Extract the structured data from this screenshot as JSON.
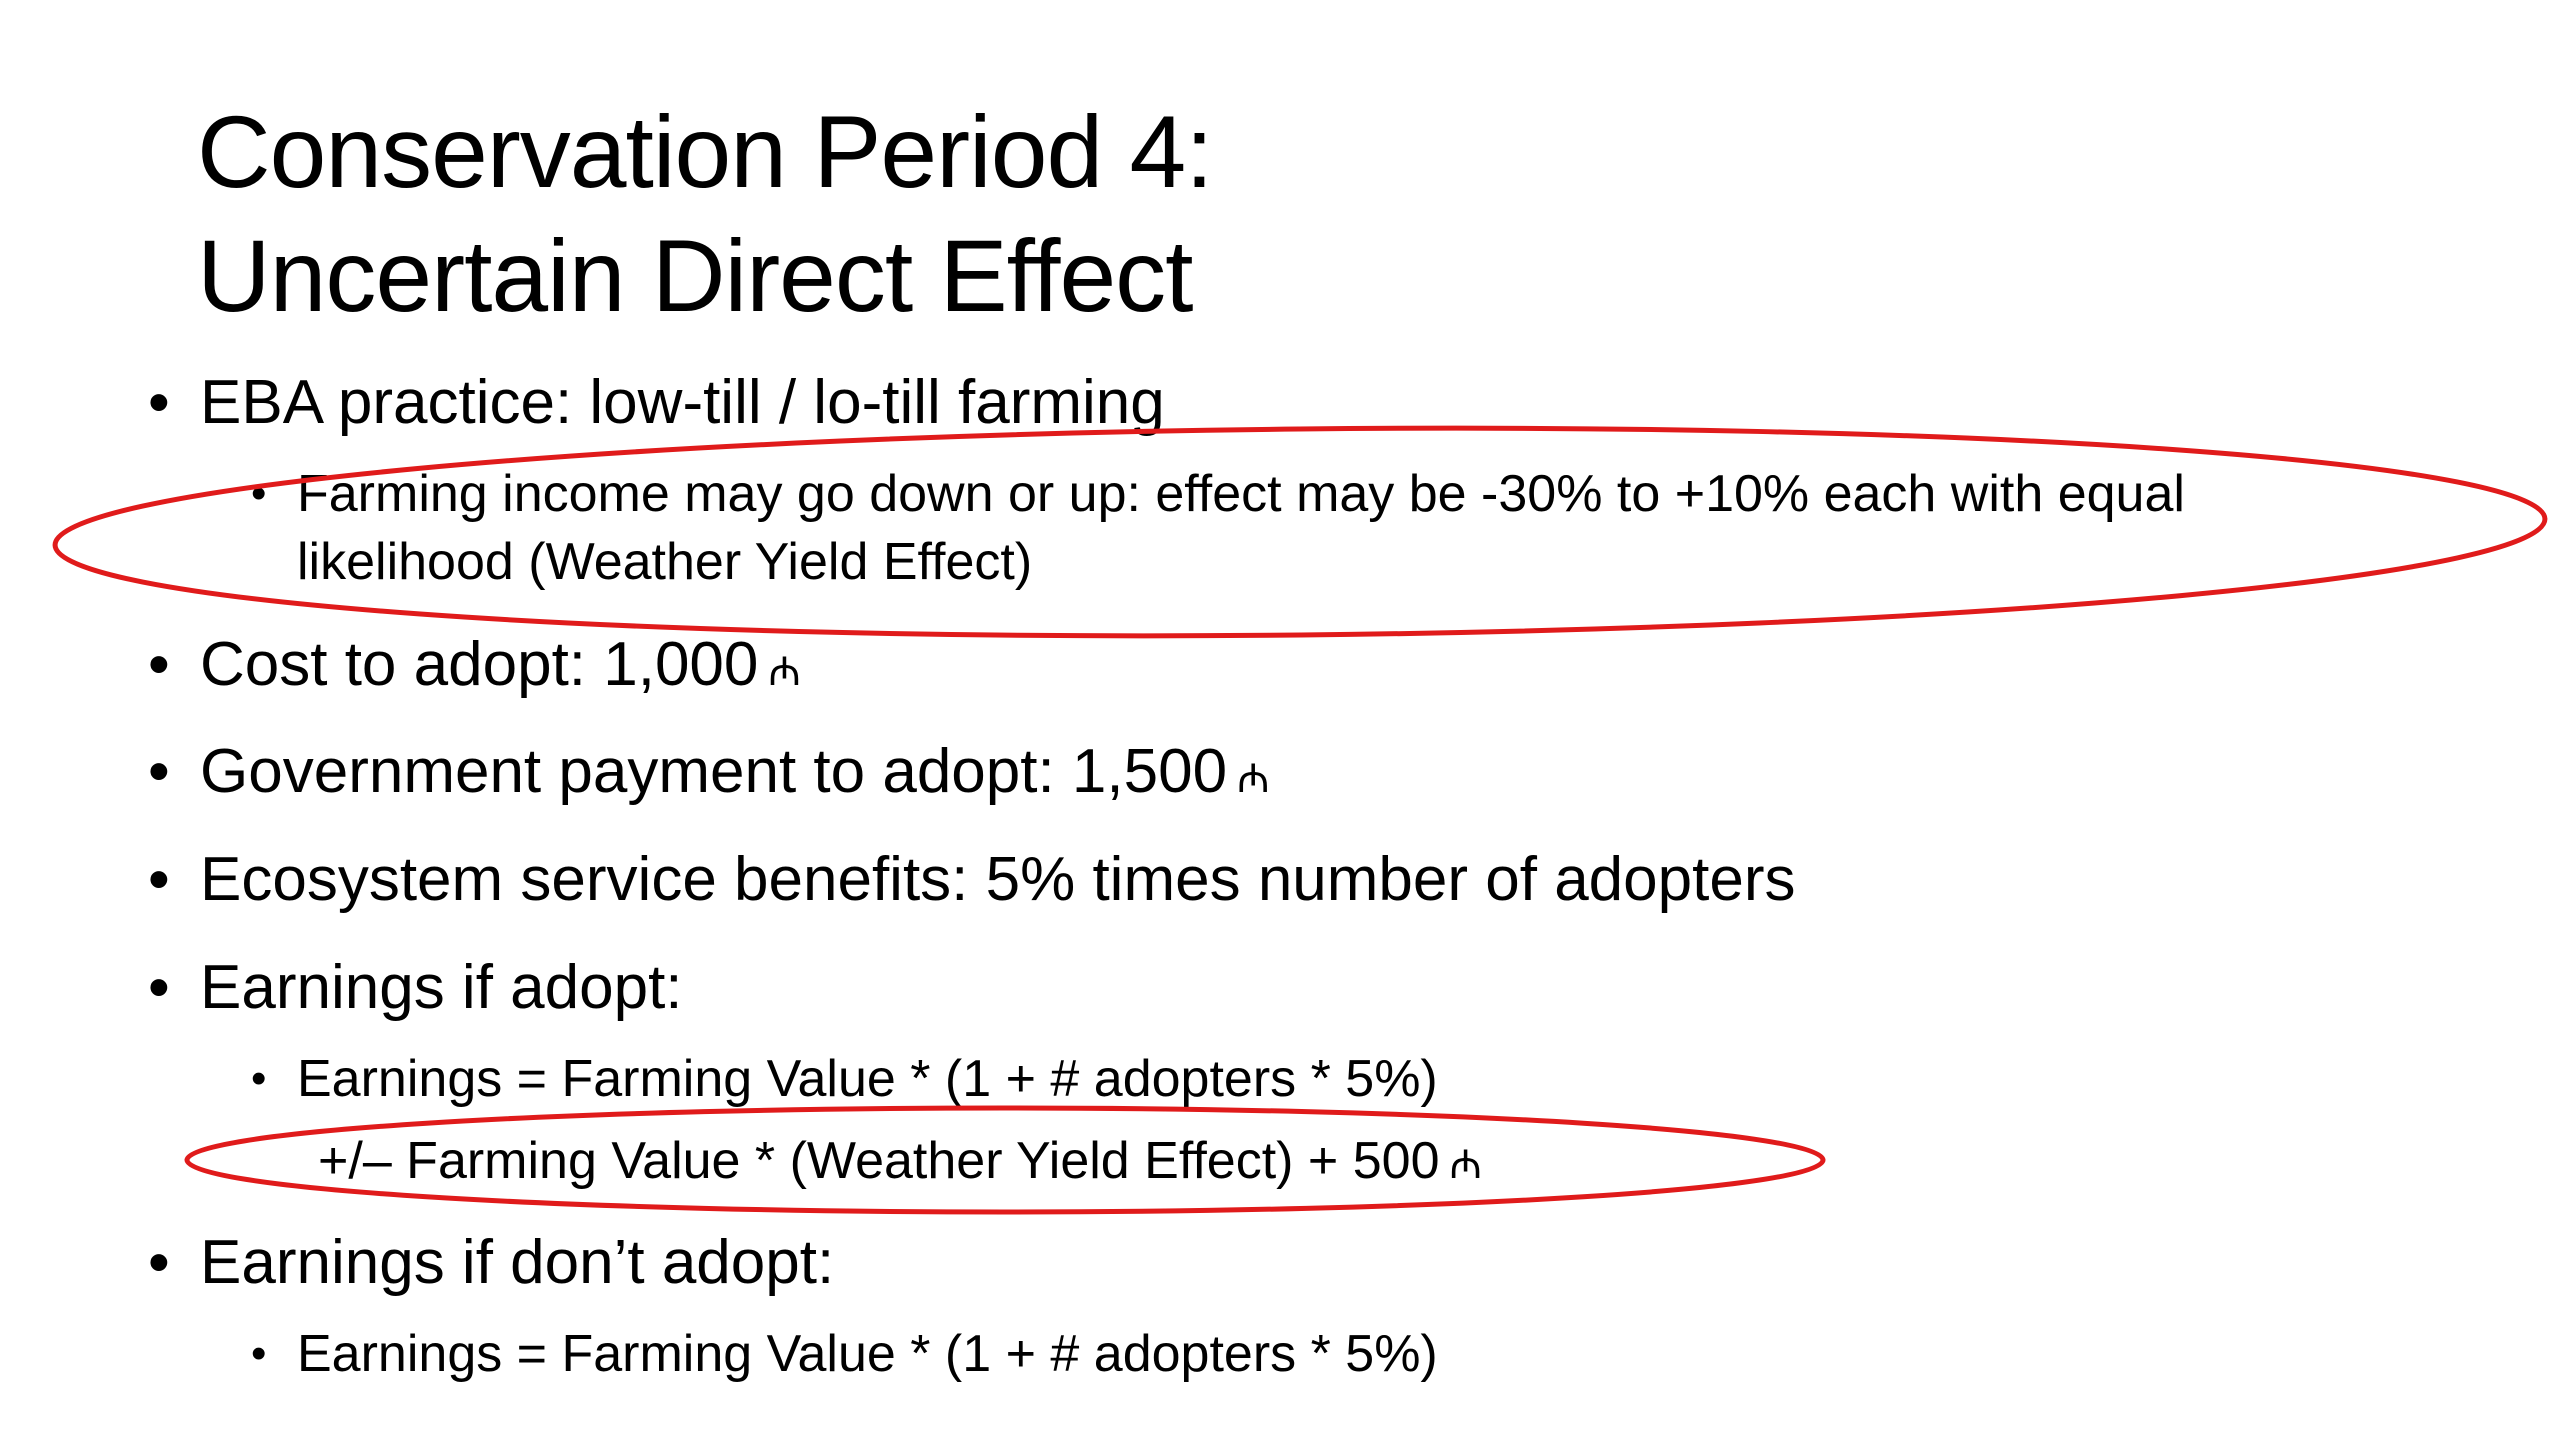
{
  "slide": {
    "title_line1": "Conservation Period 4:",
    "title_line2": "Uncertain Direct Effect",
    "bullet_char": "•",
    "coin_symbol": "₼",
    "highlight_color": "#e01b1b",
    "bullets": {
      "eba_practice": "EBA practice: low-till / lo-till farming",
      "farming_income_line1": "Farming income may go down or up: effect may be -30% to +10% each with equal",
      "farming_income_line2": "likelihood (Weather Yield Effect)",
      "cost_to_adopt": "Cost to adopt: 1,000",
      "gov_payment": "Government payment to adopt: 1,500",
      "ecosystem_benefits": "Ecosystem service benefits: 5% times number of adopters",
      "earnings_if_adopt": "Earnings if adopt:",
      "earnings_formula_adopt": "Earnings = Farming Value * (1 + # adopters * 5%)",
      "earnings_formula_adopt_cont": "+/– Farming Value * (Weather Yield Effect) + 500",
      "earnings_if_dont_adopt": "Earnings if don’t adopt:",
      "earnings_formula_dont_adopt": "Earnings = Farming Value * (1 + # adopters * 5%)"
    }
  }
}
